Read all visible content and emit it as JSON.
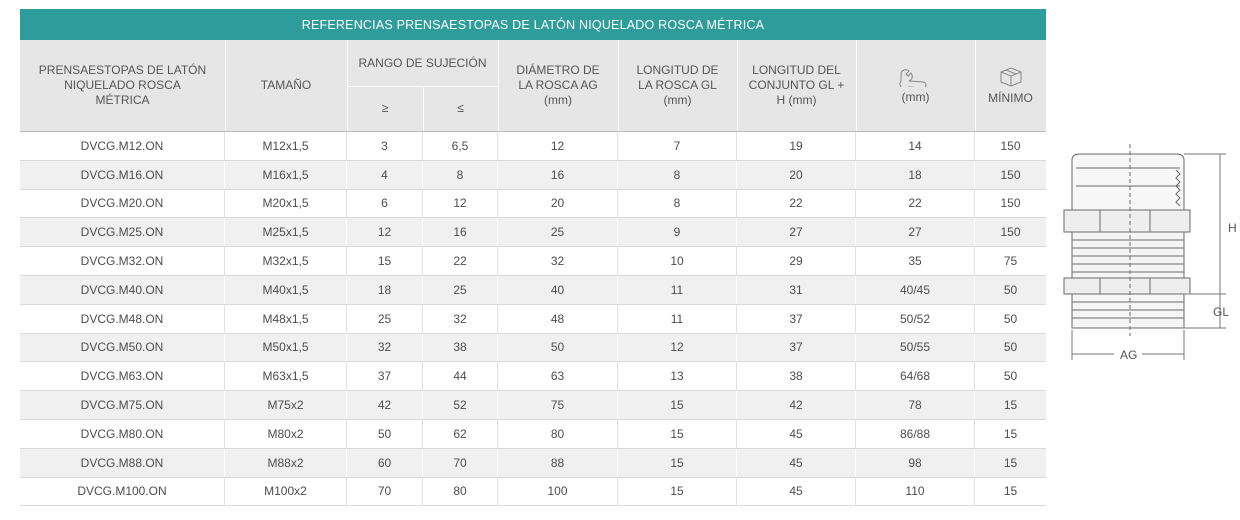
{
  "table": {
    "title": "REFERENCIAS PRENSAESTOPAS DE LATÓN NIQUELADO ROSCA MÉTRICA",
    "headers": {
      "ref": "PRENSAESTOPAS DE LATÓN NIQUELADO ROSCA MÉTRICA",
      "size": "TAMAÑO",
      "range": "RANGO DE SUJECIÓN",
      "range_min": "≥",
      "range_max": "≤",
      "diameter": "DIÁMETRO DE LA ROSCA AG (mm)",
      "length": "LONGITUD DE LA ROSCA GL (mm)",
      "total": "LONGITUD DEL CONJUNTO GL + H (mm)",
      "wrench_unit": "(mm)",
      "wrench_icon": "wrench-icon",
      "box_icon": "box-icon",
      "minimum": "MÍNIMO"
    },
    "rows": [
      [
        "DVCG.M12.ON",
        "M12x1,5",
        "3",
        "6,5",
        "12",
        "7",
        "19",
        "14",
        "150"
      ],
      [
        "DVCG.M16.ON",
        "M16x1,5",
        "4",
        "8",
        "16",
        "8",
        "20",
        "18",
        "150"
      ],
      [
        "DVCG.M20.ON",
        "M20x1,5",
        "6",
        "12",
        "20",
        "8",
        "22",
        "22",
        "150"
      ],
      [
        "DVCG.M25.ON",
        "M25x1,5",
        "12",
        "16",
        "25",
        "9",
        "27",
        "27",
        "150"
      ],
      [
        "DVCG.M32.ON",
        "M32x1,5",
        "15",
        "22",
        "32",
        "10",
        "29",
        "35",
        "75"
      ],
      [
        "DVCG.M40.ON",
        "M40x1,5",
        "18",
        "25",
        "40",
        "11",
        "31",
        "40/45",
        "50"
      ],
      [
        "DVCG.M48.ON",
        "M48x1,5",
        "25",
        "32",
        "48",
        "11",
        "37",
        "50/52",
        "50"
      ],
      [
        "DVCG.M50.ON",
        "M50x1,5",
        "32",
        "38",
        "50",
        "12",
        "37",
        "50/55",
        "50"
      ],
      [
        "DVCG.M63.ON",
        "M63x1,5",
        "37",
        "44",
        "63",
        "13",
        "38",
        "64/68",
        "50"
      ],
      [
        "DVCG.M75.ON",
        "M75x2",
        "42",
        "52",
        "75",
        "15",
        "42",
        "78",
        "15"
      ],
      [
        "DVCG.M80.ON",
        "M80x2",
        "50",
        "62",
        "80",
        "15",
        "45",
        "86/88",
        "15"
      ],
      [
        "DVCG.M88.ON",
        "M88x2",
        "60",
        "70",
        "88",
        "15",
        "45",
        "98",
        "15"
      ],
      [
        "DVCG.M100.ON",
        "M100x2",
        "70",
        "80",
        "100",
        "15",
        "45",
        "110",
        "15"
      ]
    ]
  },
  "diagram": {
    "label_h": "H",
    "label_gl": "GL",
    "label_ag": "AG"
  },
  "colors": {
    "accent": "#2e9c9a",
    "header_bg": "#e6e6e6",
    "row_alt": "#f0f0f0"
  }
}
